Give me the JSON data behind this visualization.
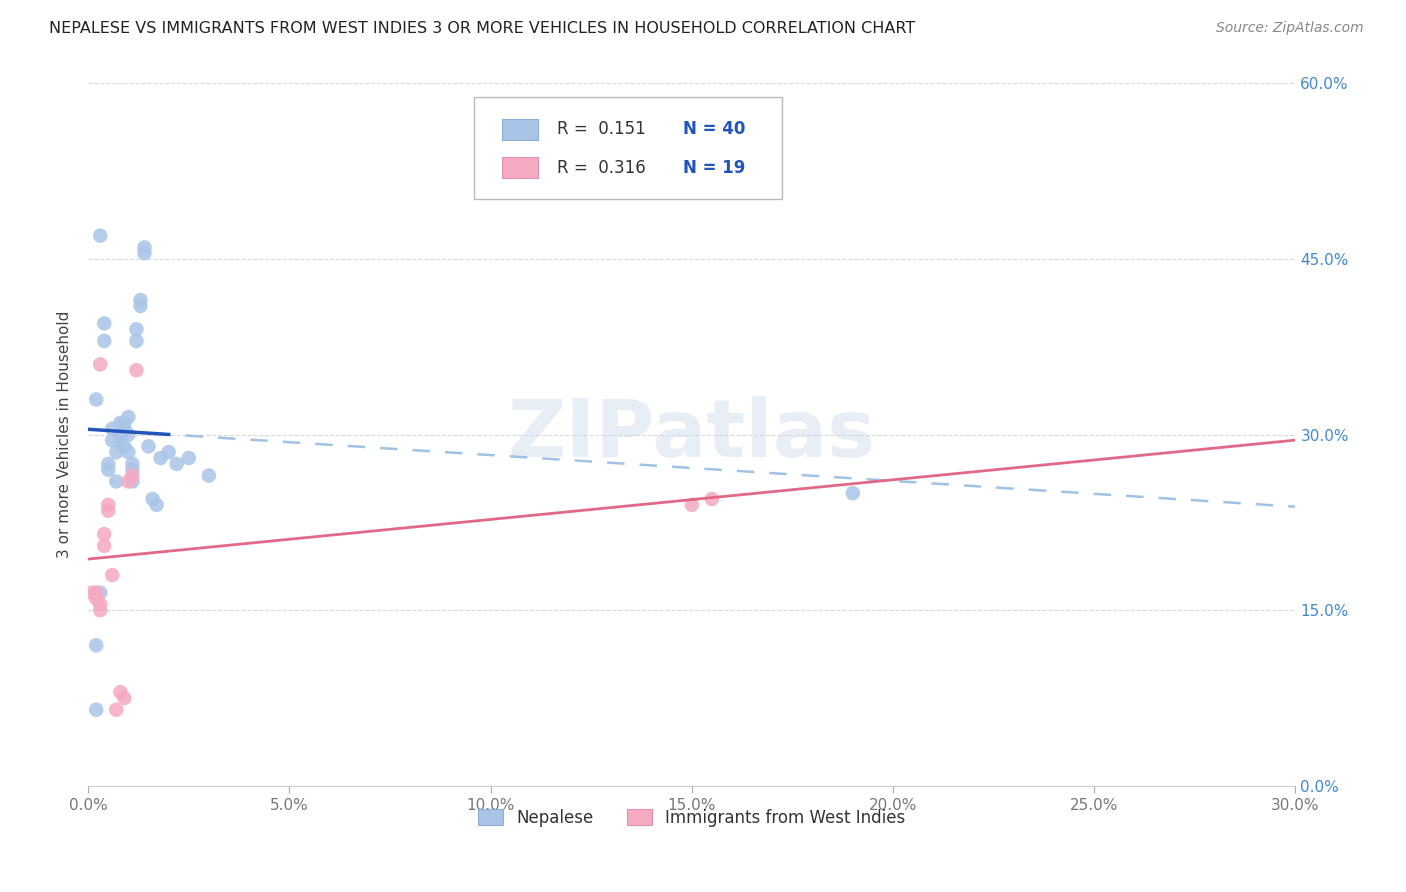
{
  "title": "NEPALESE VS IMMIGRANTS FROM WEST INDIES 3 OR MORE VEHICLES IN HOUSEHOLD CORRELATION CHART",
  "source": "Source: ZipAtlas.com",
  "ylabel_label": "3 or more Vehicles in Household",
  "xlim": [
    0.0,
    0.3
  ],
  "ylim": [
    0.0,
    0.6
  ],
  "nepalese_R": "0.151",
  "nepalese_N": "40",
  "westindies_R": "0.316",
  "westindies_N": "19",
  "nepalese_dot_color": "#aac4e8",
  "westindies_dot_color": "#f4aac0",
  "nepalese_line_color": "#2255bb",
  "westindies_line_color": "#e06888",
  "nepalese_dash_color": "#90b8e0",
  "x_ticks": [
    0.0,
    0.05,
    0.1,
    0.15,
    0.2,
    0.25,
    0.3
  ],
  "x_tick_labels": [
    "0.0%",
    "5.0%",
    "10.0%",
    "15.0%",
    "20.0%",
    "25.0%",
    "30.0%"
  ],
  "y_ticks": [
    0.0,
    0.15,
    0.3,
    0.45,
    0.6
  ],
  "y_tick_labels": [
    "0.0%",
    "15.0%",
    "30.0%",
    "45.0%",
    "60.0%"
  ],
  "nepalese_x": [
    0.002,
    0.003,
    0.005,
    0.005,
    0.006,
    0.006,
    0.007,
    0.007,
    0.008,
    0.008,
    0.008,
    0.009,
    0.009,
    0.009,
    0.01,
    0.01,
    0.01,
    0.011,
    0.011,
    0.011,
    0.012,
    0.012,
    0.013,
    0.013,
    0.014,
    0.014,
    0.015,
    0.016,
    0.017,
    0.018,
    0.004,
    0.004,
    0.022,
    0.025,
    0.003,
    0.002,
    0.002,
    0.19,
    0.03,
    0.02
  ],
  "nepalese_y": [
    0.065,
    0.165,
    0.275,
    0.27,
    0.305,
    0.295,
    0.285,
    0.26,
    0.3,
    0.295,
    0.31,
    0.29,
    0.305,
    0.31,
    0.315,
    0.3,
    0.285,
    0.26,
    0.27,
    0.275,
    0.38,
    0.39,
    0.41,
    0.415,
    0.46,
    0.455,
    0.29,
    0.245,
    0.24,
    0.28,
    0.38,
    0.395,
    0.275,
    0.28,
    0.47,
    0.33,
    0.12,
    0.25,
    0.265,
    0.285
  ],
  "westindies_x": [
    0.001,
    0.002,
    0.002,
    0.003,
    0.003,
    0.004,
    0.005,
    0.005,
    0.006,
    0.007,
    0.008,
    0.009,
    0.01,
    0.011,
    0.012,
    0.15,
    0.155,
    0.003,
    0.004
  ],
  "westindies_y": [
    0.165,
    0.16,
    0.165,
    0.155,
    0.15,
    0.205,
    0.24,
    0.235,
    0.18,
    0.065,
    0.08,
    0.075,
    0.26,
    0.265,
    0.355,
    0.24,
    0.245,
    0.36,
    0.215
  ],
  "background_color": "#ffffff",
  "grid_color": "#d8d8d8",
  "watermark": "ZIPatlas",
  "right_tick_color": "#4488cc",
  "title_color": "#222222",
  "source_color": "#888888"
}
